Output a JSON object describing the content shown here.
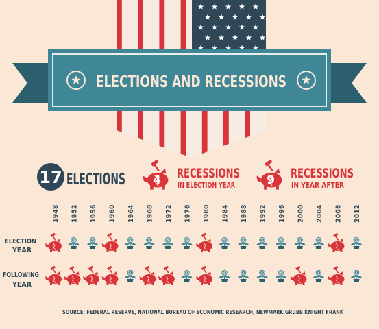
{
  "title": "ELECTIONS AND RECESSIONS",
  "stats": {
    "elections": {
      "value": "17",
      "label": "ELECTIONS"
    },
    "recessions_election_year": {
      "value": "4",
      "label": "RECESSIONS",
      "sublabel": "IN ELECTION YEAR"
    },
    "recessions_year_after": {
      "value": "9",
      "label": "RECESSIONS",
      "sublabel": "IN YEAR AFTER"
    }
  },
  "years": [
    "1948",
    "1952",
    "1956",
    "1960",
    "1964",
    "1968",
    "1972",
    "1976",
    "1980",
    "1984",
    "1988",
    "1992",
    "1996",
    "2000",
    "2004",
    "2008",
    "2012"
  ],
  "rows": [
    {
      "label_line1": "ELECTION",
      "label_line2": "YEAR",
      "values": [
        "recession",
        "growth",
        "growth",
        "recession",
        "growth",
        "growth",
        "growth",
        "growth",
        "recession",
        "growth",
        "growth",
        "growth",
        "growth",
        "growth",
        "growth",
        "recession",
        "growth"
      ]
    },
    {
      "label_line1": "FOLLOWING",
      "label_line2": "YEAR",
      "values": [
        "recession",
        "recession",
        "recession",
        "recession",
        "growth",
        "recession",
        "recession",
        "growth",
        "recession",
        "growth",
        "growth",
        "growth",
        "growth",
        "recession",
        "growth",
        "recession",
        "growth"
      ]
    }
  ],
  "source": "SOURCE: FEDERAL RESERVE, NATIONAL BUREAU OF ECONOMIC RESEARCH, NEWMARK GRUBB KNIGHT FRANK",
  "colors": {
    "background": "#fbe7d6",
    "navy": "#2f4756",
    "red": "#d8343a",
    "teal": "#3f8796",
    "ribbon_dark": "#2b5f6e"
  },
  "icons": {
    "recession": "piggy-bank-hammer-icon",
    "growth": "money-plant-icon"
  }
}
